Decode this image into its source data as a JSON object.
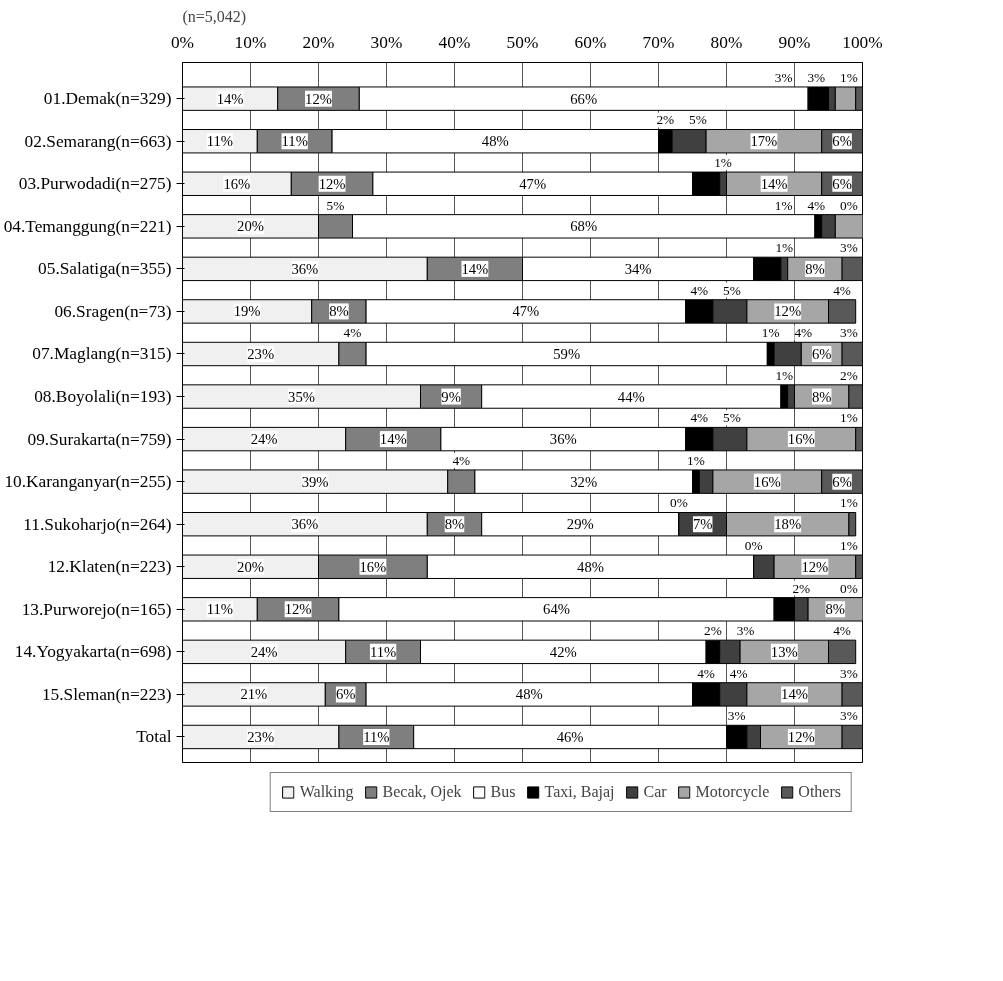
{
  "chart_data": {
    "type": "bar",
    "orientation": "horizontal",
    "stacked": true,
    "annotations": [
      "(n=5,042)"
    ],
    "categories": [
      "01.Demak(n=329)",
      "02.Semarang(n=663)",
      "03.Purwodadi(n=275)",
      "04.Temanggung(n=221)",
      "05.Salatiga(n=355)",
      "06.Sragen(n=73)",
      "07.Maglang(n=315)",
      "08.Boyolali(n=193)",
      "09.Surakarta(n=759)",
      "10.Karanganyar(n=255)",
      "11.Sukoharjo(n=264)",
      "12.Klaten(n=223)",
      "13.Purworejo(n=165)",
      "14.Yogyakarta(n=698)",
      "15.Sleman(n=223)",
      "Total"
    ],
    "series": [
      {
        "name": "Walking",
        "color": "#f0f0f0",
        "values": [
          14,
          11,
          16,
          20,
          36,
          19,
          23,
          35,
          24,
          39,
          36,
          20,
          11,
          24,
          21,
          23
        ],
        "value_labels": [
          "14%",
          "11%",
          "16%",
          "20%",
          "36%",
          "19%",
          "23%",
          "35%",
          "24%",
          "39%",
          "36%",
          "20%",
          "11%",
          "24%",
          "21%",
          "23%"
        ]
      },
      {
        "name": "Becak, Ojek",
        "color": "#7f7f7f",
        "values": [
          12,
          11,
          12,
          5,
          14,
          8,
          4,
          9,
          14,
          4,
          8,
          16,
          12,
          11,
          6,
          11
        ],
        "value_labels": [
          "12%",
          "11%",
          "12%",
          "5%",
          "14%",
          "8%",
          "4%",
          "9%",
          "14%",
          "4%",
          "8%",
          "16%",
          "12%",
          "11%",
          "6%",
          "11%"
        ]
      },
      {
        "name": "Bus",
        "color": "#ffffff",
        "values": [
          66,
          48,
          47,
          68,
          34,
          47,
          59,
          44,
          36,
          32,
          29,
          48,
          64,
          42,
          48,
          46
        ],
        "value_labels": [
          "66%",
          "48%",
          "47%",
          "68%",
          "34%",
          "47%",
          "59%",
          "44%",
          "36%",
          "32%",
          "29%",
          "48%",
          "64%",
          "42%",
          "48%",
          "46%"
        ]
      },
      {
        "name": "Taxi, Bajaj",
        "color": "#000000",
        "values": [
          3,
          2,
          4,
          1,
          4,
          4,
          1,
          1,
          4,
          1,
          0,
          0,
          3,
          2,
          4,
          3
        ],
        "value_labels": [
          "3%",
          "2%",
          null,
          "1%",
          null,
          "4%",
          "1%",
          "1%",
          "4%",
          "1%",
          "0%",
          "0%",
          null,
          "2%",
          "4%",
          "3%"
        ]
      },
      {
        "name": "Car",
        "color": "#404040",
        "values": [
          1,
          5,
          1,
          2,
          1,
          5,
          4,
          1,
          5,
          2,
          7,
          3,
          2,
          3,
          4,
          2
        ],
        "value_labels": [
          null,
          "5%",
          "1%",
          null,
          "1%",
          "5%",
          "4%",
          null,
          "5%",
          null,
          "7%",
          null,
          "2%",
          "3%",
          "4%",
          null
        ]
      },
      {
        "name": "Motorcycle",
        "color": "#a6a6a6",
        "values": [
          3,
          17,
          14,
          4,
          8,
          12,
          6,
          8,
          16,
          16,
          18,
          12,
          8,
          13,
          14,
          12
        ],
        "value_labels": [
          "3%",
          "17%",
          "14%",
          "4%",
          "8%",
          "12%",
          "6%",
          "8%",
          "16%",
          "16%",
          "18%",
          "12%",
          "8%",
          "13%",
          "14%",
          "12%"
        ]
      },
      {
        "name": "Others",
        "color": "#595959",
        "values": [
          1,
          6,
          6,
          0,
          3,
          4,
          3,
          2,
          1,
          6,
          1,
          1,
          0,
          4,
          3,
          3
        ],
        "value_labels": [
          "1%",
          "6%",
          "6%",
          "0%",
          "3%",
          "4%",
          "3%",
          "2%",
          "1%",
          "6%",
          "1%",
          "1%",
          "0%",
          "4%",
          "3%",
          "3%"
        ]
      }
    ],
    "xlim": [
      0,
      100
    ],
    "xticks": [
      {
        "value": 0,
        "label": "0%"
      },
      {
        "value": 10,
        "label": "10%"
      },
      {
        "value": 20,
        "label": "20%"
      },
      {
        "value": 30,
        "label": "30%"
      },
      {
        "value": 40,
        "label": "40%"
      },
      {
        "value": 50,
        "label": "50%"
      },
      {
        "value": 60,
        "label": "60%"
      },
      {
        "value": 70,
        "label": "70%"
      },
      {
        "value": 80,
        "label": "80%"
      },
      {
        "value": 90,
        "label": "90%"
      },
      {
        "value": 100,
        "label": "100%"
      }
    ],
    "grid": "x",
    "legend": "bottom"
  }
}
